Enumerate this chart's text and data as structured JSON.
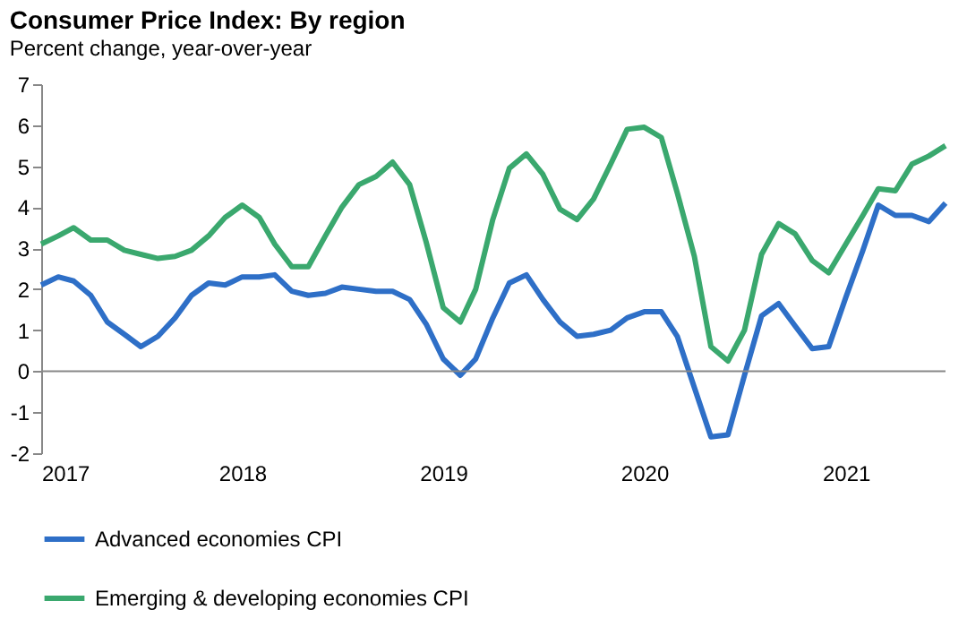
{
  "chart_data": {
    "type": "line",
    "title": "Consumer Price Index: By region",
    "subtitle": "Percent change, year-over-year",
    "x": [
      "2017-01",
      "2017-02",
      "2017-03",
      "2017-04",
      "2017-05",
      "2017-06",
      "2017-07",
      "2017-08",
      "2017-09",
      "2017-10",
      "2017-11",
      "2017-12",
      "2018-01",
      "2018-02",
      "2018-03",
      "2018-04",
      "2018-05",
      "2018-06",
      "2018-07",
      "2018-08",
      "2018-09",
      "2018-10",
      "2018-11",
      "2018-12",
      "2019-01",
      "2019-02",
      "2019-03",
      "2019-04",
      "2019-05",
      "2019-06",
      "2019-07",
      "2019-08",
      "2019-09",
      "2019-10",
      "2019-11",
      "2019-12",
      "2020-01",
      "2020-02",
      "2020-03",
      "2020-04",
      "2020-05",
      "2020-06",
      "2020-07",
      "2020-08",
      "2020-09",
      "2020-10",
      "2020-11",
      "2020-12",
      "2021-01",
      "2021-02",
      "2021-03",
      "2021-04",
      "2021-05",
      "2021-06",
      "2021-07"
    ],
    "series": [
      {
        "name": "Advanced economies CPI",
        "color": "#2e6fc7",
        "values": [
          2.1,
          2.3,
          2.2,
          1.85,
          1.2,
          0.9,
          0.6,
          0.85,
          1.3,
          1.85,
          2.15,
          2.1,
          2.3,
          2.3,
          2.35,
          1.95,
          1.85,
          1.9,
          2.05,
          2.0,
          1.95,
          1.95,
          1.75,
          1.15,
          0.3,
          -0.1,
          0.3,
          1.3,
          2.15,
          2.35,
          1.75,
          1.2,
          0.85,
          0.9,
          1.0,
          1.3,
          1.45,
          1.45,
          0.85,
          -0.4,
          -1.6,
          -1.55,
          -0.1,
          1.35,
          1.65,
          1.1,
          0.55,
          0.6,
          1.8,
          2.95,
          4.05,
          3.8,
          3.8,
          3.65,
          4.1
        ]
      },
      {
        "name": "Emerging & developing economies CPI",
        "color": "#3aa86e",
        "values": [
          3.1,
          3.3,
          3.5,
          3.2,
          3.2,
          2.95,
          2.85,
          2.75,
          2.8,
          2.95,
          3.3,
          3.75,
          4.05,
          3.75,
          3.1,
          2.55,
          2.55,
          3.3,
          4.0,
          4.55,
          4.75,
          5.1,
          4.55,
          3.15,
          1.55,
          1.2,
          2.0,
          3.7,
          4.95,
          5.3,
          4.8,
          3.95,
          3.7,
          4.2,
          5.05,
          5.9,
          5.95,
          5.7,
          4.35,
          2.8,
          0.6,
          0.25,
          1.0,
          2.85,
          3.6,
          3.35,
          2.7,
          2.4,
          3.1,
          3.8,
          4.45,
          4.4,
          5.05,
          5.25,
          5.5
        ]
      }
    ],
    "xlim": [
      "2017-01",
      "2021-07"
    ],
    "xticks": [
      "2017",
      "2018",
      "2019",
      "2020",
      "2021"
    ],
    "ylim": [
      -2,
      7
    ],
    "yticks": [
      -2,
      -1,
      0,
      1,
      2,
      3,
      4,
      5,
      6,
      7
    ],
    "ref_lines": [
      {
        "axis": "y",
        "value": 0,
        "color": "#888888"
      }
    ],
    "grid": false,
    "legend": "bottom",
    "marker": "none",
    "line_style": "solid"
  }
}
